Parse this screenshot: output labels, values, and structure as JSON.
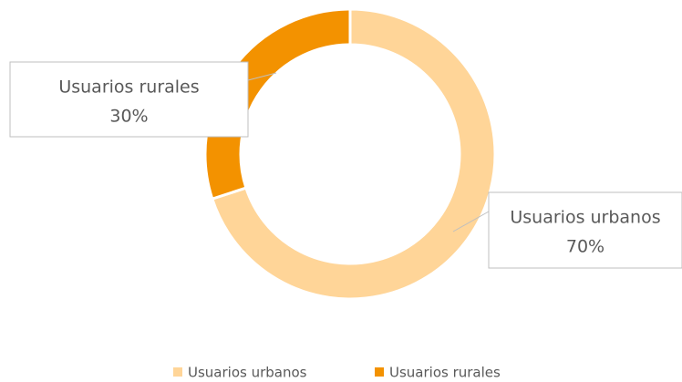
{
  "chart_data": {
    "type": "donut",
    "categories": [
      "Usuarios urbanos",
      "Usuarios rurales"
    ],
    "values": [
      70,
      30
    ],
    "value_labels": [
      "70%",
      "30%"
    ],
    "colors": [
      "#FFD598",
      "#F39200"
    ],
    "legend": "bottom"
  }
}
